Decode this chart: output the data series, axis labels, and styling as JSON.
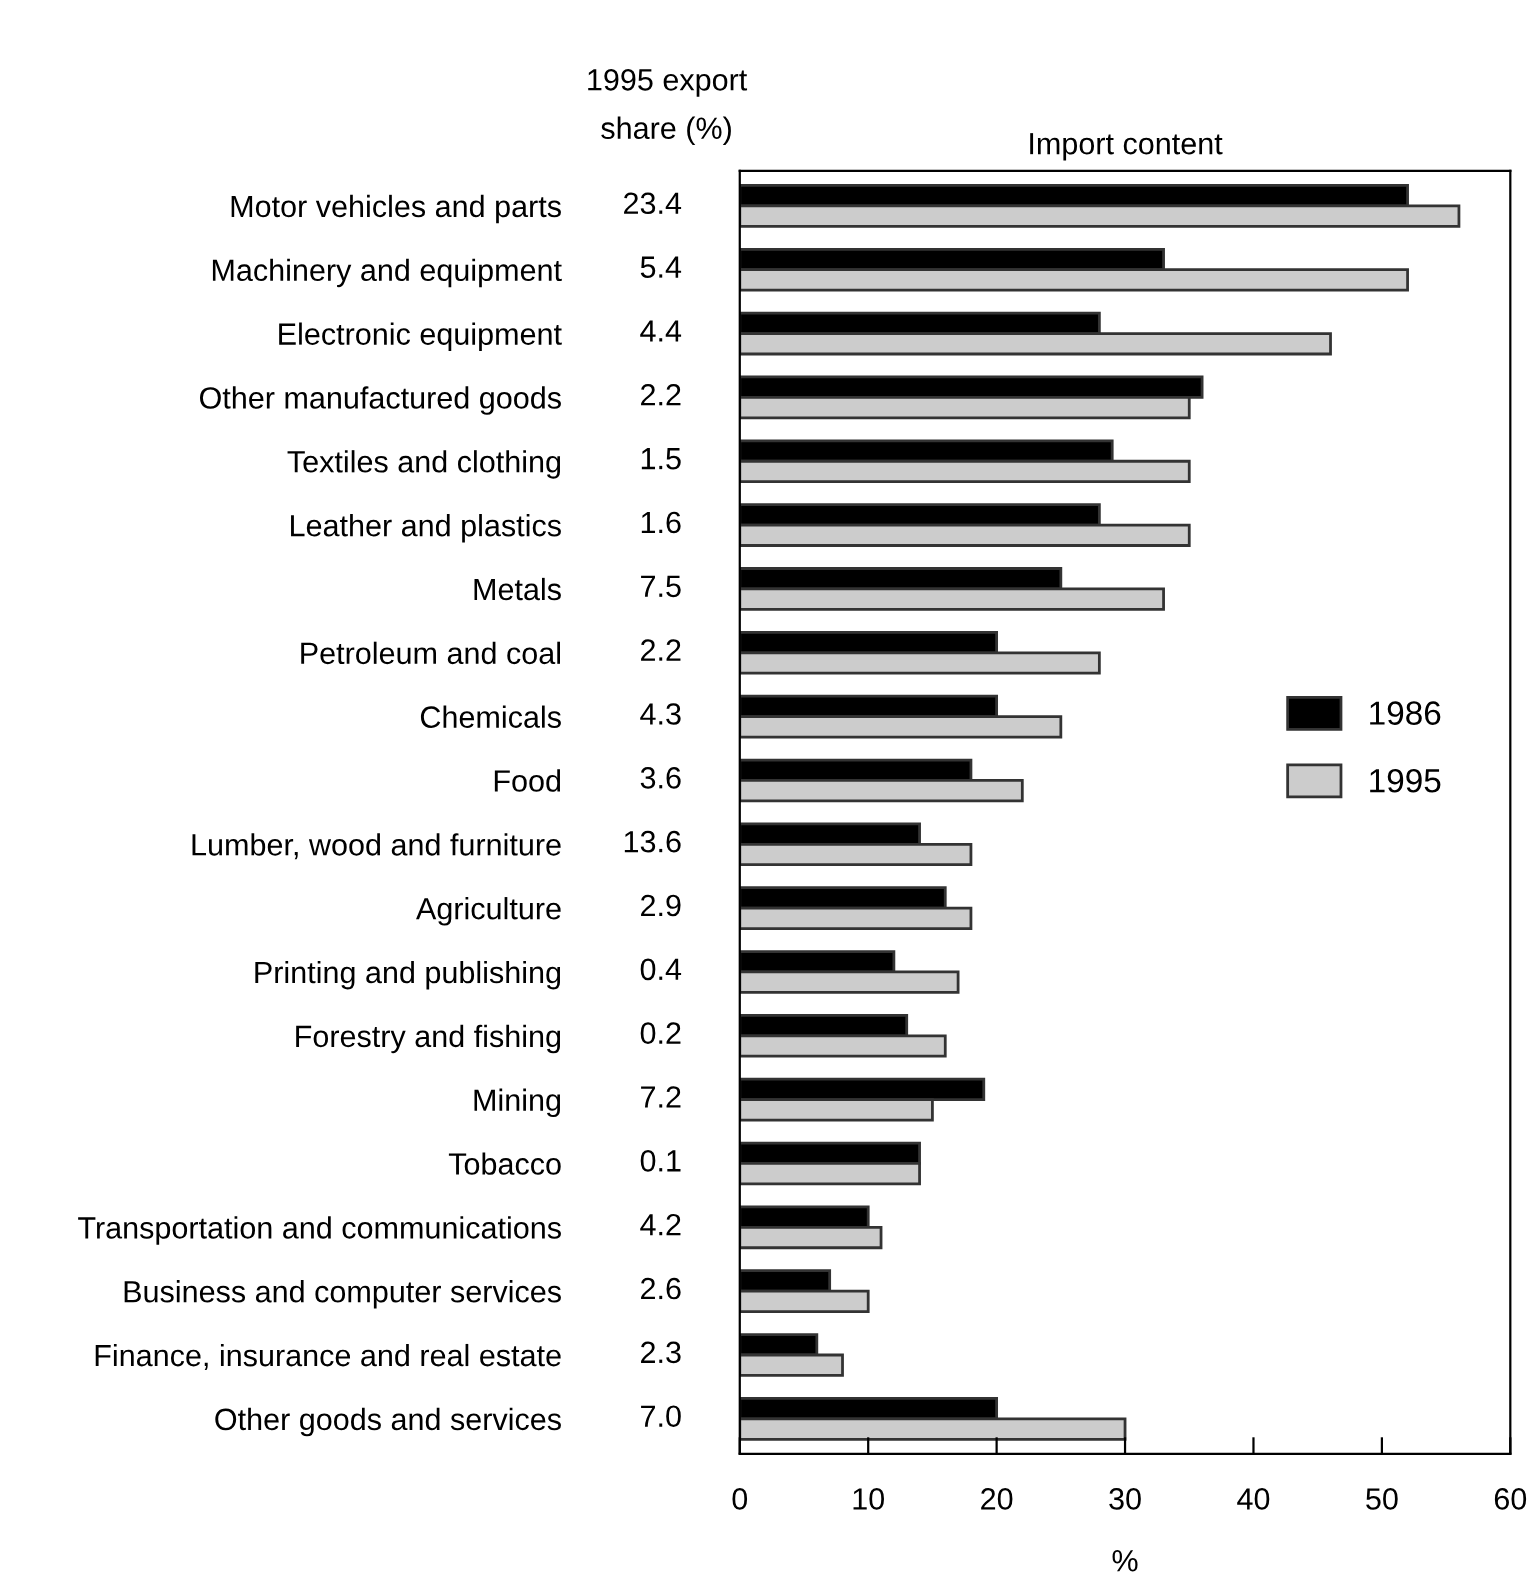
{
  "chart_data": {
    "type": "bar",
    "orientation": "horizontal",
    "title": "Import content",
    "xlabel": "%",
    "y2label": "1995 export share (%)",
    "categories": [
      "Motor vehicles and parts",
      "Machinery and equipment",
      "Electronic equipment",
      "Other manufactured goods",
      "Textiles and clothing",
      "Leather and plastics",
      "Metals",
      "Petroleum and coal",
      "Chemicals",
      "Food",
      "Lumber, wood and furniture",
      "Agriculture",
      "Printing and publishing",
      "Forestry and fishing",
      "Mining",
      "Tobacco",
      "Transportation and communications",
      "Business and computer services",
      "Finance, insurance and real estate",
      "Other goods and services"
    ],
    "y2_categories": [
      "23.4",
      "5.4",
      "4.4",
      "2.2",
      "1.5",
      "1.6",
      "7.5",
      "2.2",
      "4.3",
      "3.6",
      "13.6",
      "2.9",
      "0.4",
      "0.2",
      "7.2",
      "0.1",
      "4.2",
      "2.6",
      "2.3",
      "7.0"
    ],
    "series": [
      {
        "name": "1986",
        "color": "#000000",
        "values": [
          52,
          33,
          28,
          36,
          29,
          28,
          25,
          20,
          20,
          18,
          14,
          16,
          12,
          13,
          19,
          14,
          10,
          7,
          6,
          20
        ]
      },
      {
        "name": "1995",
        "color": "#cccccc",
        "values": [
          56,
          52,
          46,
          35,
          35,
          35,
          33,
          28,
          25,
          22,
          18,
          18,
          17,
          16,
          15,
          14,
          11,
          10,
          8,
          30
        ]
      }
    ],
    "xlim": [
      0,
      60
    ],
    "xticks": [
      0,
      10,
      20,
      30,
      40,
      50,
      60
    ],
    "grid": false,
    "legend": "right"
  }
}
